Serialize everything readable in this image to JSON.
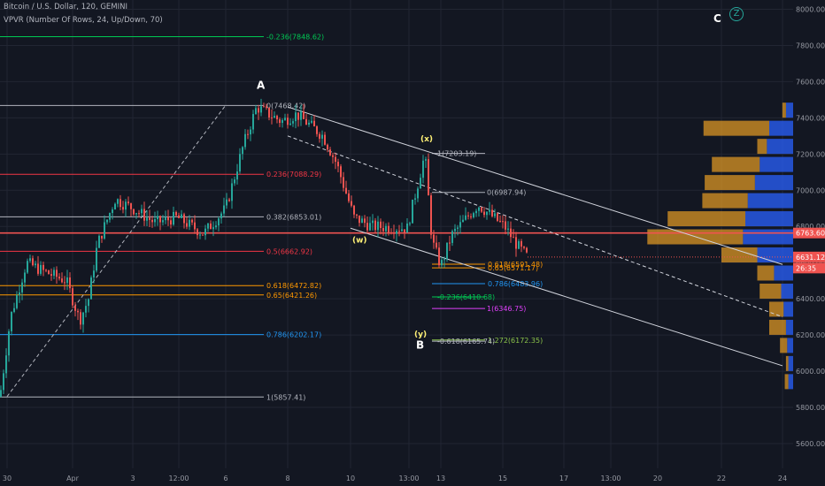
{
  "header": {
    "title": "Bitcoin / U.S. Dollar, 120, GEMINI",
    "indicator": "VPVR (Number Of Rows, 24, Up/Down, 70)"
  },
  "logo": "Z",
  "colors": {
    "bg": "#131722",
    "grid": "#222633",
    "up": "#26a69a",
    "down": "#ef5350",
    "axis_text": "#9598a1"
  },
  "chart_data": {
    "type": "candlestick",
    "ylim": [
      5500,
      8100
    ],
    "y_ticks": [
      5600,
      5800,
      6000,
      6200,
      6400,
      6600,
      6800,
      7000,
      7200,
      7400,
      7600,
      7800,
      8000
    ],
    "x_ticks": [
      "30",
      "Apr",
      "3",
      "12:00",
      "6",
      "8",
      "10",
      "13:00",
      "13",
      "15",
      "17",
      "13:00",
      "20",
      "22",
      "24"
    ],
    "price_badges": [
      {
        "label": "6763.60",
        "color": "#ef5350",
        "price": 6763.6
      },
      {
        "label": "6631.12",
        "color": "#ef5350",
        "price": 6631.12
      },
      {
        "label": "26:35",
        "color": "#ef5350",
        "price": 6570
      }
    ],
    "horizontal_levels": [
      {
        "price": 7848.62,
        "color": "#00c853",
        "label": "-0.236(7848.62)",
        "group": 1
      },
      {
        "price": 7468.42,
        "color": "#b2b5be",
        "label": "0(7468.42)",
        "group": 1
      },
      {
        "price": 7088.29,
        "color": "#f23645",
        "label": "0.236(7088.29)",
        "group": 1
      },
      {
        "price": 6853.01,
        "color": "#b2b5be",
        "label": "0.382(6853.01)",
        "group": 1
      },
      {
        "price": 6662.92,
        "color": "#f23645",
        "label": "0.5(6662.92)",
        "group": 1
      },
      {
        "price": 6472.82,
        "color": "#ff9800",
        "label": "0.618(6472.82)",
        "group": 1
      },
      {
        "price": 6421.26,
        "color": "#ff9800",
        "label": "0.65(6421.26)",
        "group": 1
      },
      {
        "price": 6202.17,
        "color": "#2196f3",
        "label": "0.786(6202.17)",
        "group": 1
      },
      {
        "price": 5857.41,
        "color": "#b2b5be",
        "label": "1(5857.41)",
        "group": 1
      },
      {
        "price": 7203.19,
        "color": "#b2b5be",
        "label": "1(7203.19)",
        "group": 2
      },
      {
        "price": 6987.94,
        "color": "#b2b5be",
        "label": "0(6987.94)",
        "group": 2
      },
      {
        "price": 6591.48,
        "color": "#ff9800",
        "label": "0.618(6591.48)",
        "group": 2
      },
      {
        "price": 6571.17,
        "color": "#ff9800",
        "label": "0.65(6571.17)",
        "group": 2
      },
      {
        "price": 6483.96,
        "color": "#2196f3",
        "label": "0.786(6483.96)",
        "group": 2
      },
      {
        "price": 6410.68,
        "color": "#00c853",
        "label": "-0.236(6410.68)",
        "group": 2
      },
      {
        "price": 6346.75,
        "color": "#e040fb",
        "label": "1(6346.75)",
        "group": 2
      },
      {
        "price": 6172.35,
        "color": "#8bc34a",
        "label": "1.272(6172.35)",
        "group": 2
      },
      {
        "price": 6165.74,
        "color": "#b2b5be",
        "label": "-0.618(6165.74)",
        "group": 2
      },
      {
        "price": 6763.6,
        "color": "#ef5350",
        "label": "",
        "group": 0
      }
    ],
    "annotations": [
      {
        "text": "A",
        "color": "#ffffff"
      },
      {
        "text": "(x)",
        "color": "#fff176"
      },
      {
        "text": "(w)",
        "color": "#fff176"
      },
      {
        "text": "(y)",
        "color": "#fff176"
      },
      {
        "text": "B",
        "color": "#ffffff"
      },
      {
        "text": "C",
        "color": "#ffffff"
      }
    ],
    "volume_profile": {
      "row_prices": [
        7440,
        7340,
        7240,
        7140,
        7040,
        6940,
        6840,
        6740,
        6640,
        6540,
        6440,
        6340,
        6240,
        6140,
        6040,
        5940
      ],
      "up": [
        6,
        20,
        22,
        28,
        32,
        38,
        40,
        42,
        30,
        16,
        10,
        8,
        6,
        5,
        4,
        4
      ],
      "down": [
        3,
        55,
        8,
        40,
        42,
        38,
        65,
        80,
        30,
        14,
        18,
        12,
        14,
        6,
        2,
        3
      ]
    },
    "trend_lines": [
      {
        "from": {
          "x": "30",
          "y": 5860
        },
        "to": {
          "x": "6",
          "y": 7470
        },
        "color": "#b2b5be",
        "dashed": true
      },
      {
        "from": {
          "x": "8",
          "y": 7460
        },
        "to": {
          "x": "24",
          "y": 6590
        },
        "color": "#d1d4dc",
        "dashed": false
      },
      {
        "from": {
          "x": "8",
          "y": 7300
        },
        "to": {
          "x": "24",
          "y": 6300
        },
        "color": "#d1d4dc",
        "dashed": true
      },
      {
        "from": {
          "x": "10",
          "y": 6790
        },
        "to": {
          "x": "24",
          "y": 6030
        },
        "color": "#d1d4dc",
        "dashed": false
      }
    ]
  }
}
